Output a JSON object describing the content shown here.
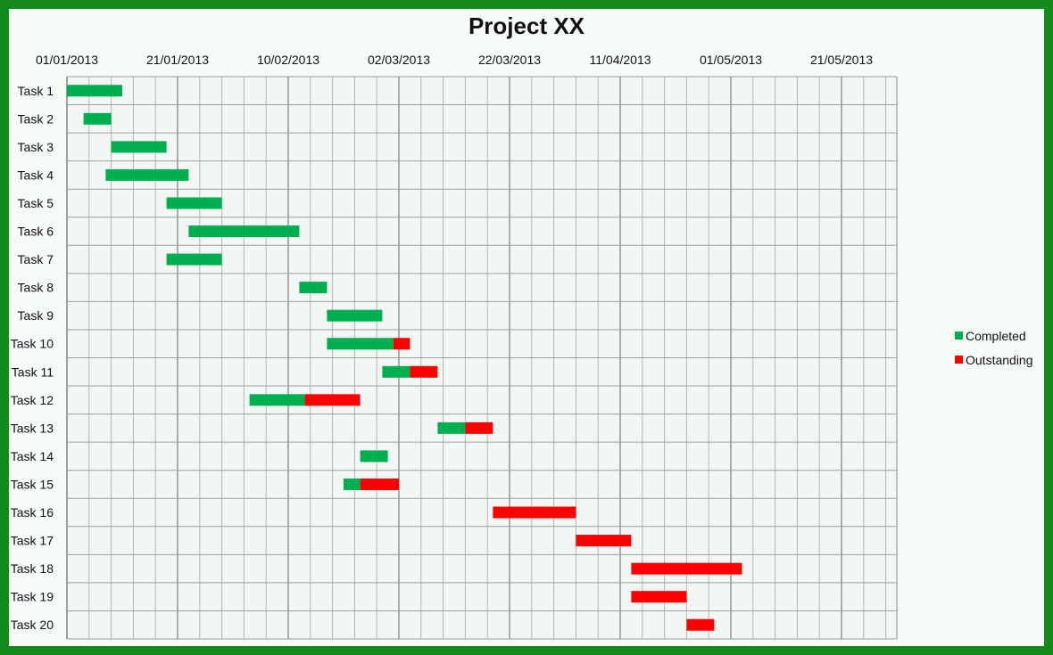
{
  "title": "Project XX",
  "chart_data": {
    "type": "gantt",
    "title": "Project XX",
    "x_axis": {
      "start": "01/01/2013",
      "end": "31/05/2013",
      "tick_labels": [
        "01/01/2013",
        "21/01/2013",
        "10/02/2013",
        "02/03/2013",
        "22/03/2013",
        "11/04/2013",
        "01/05/2013",
        "21/05/2013"
      ],
      "tick_interval_days": 20,
      "minor_grid_days": 4
    },
    "grid": true,
    "legend_position": "right",
    "series": [
      {
        "name": "Completed",
        "color": "#00b050"
      },
      {
        "name": "Outstanding",
        "color": "#ff0000"
      }
    ],
    "tasks": [
      {
        "name": "Task 1",
        "start": "01/01/2013",
        "completed_days": 10,
        "outstanding_days": 0
      },
      {
        "name": "Task 2",
        "start": "04/01/2013",
        "completed_days": 5,
        "outstanding_days": 0
      },
      {
        "name": "Task 3",
        "start": "09/01/2013",
        "completed_days": 10,
        "outstanding_days": 0
      },
      {
        "name": "Task 4",
        "start": "08/01/2013",
        "completed_days": 15,
        "outstanding_days": 0
      },
      {
        "name": "Task 5",
        "start": "19/01/2013",
        "completed_days": 10,
        "outstanding_days": 0
      },
      {
        "name": "Task 6",
        "start": "23/01/2013",
        "completed_days": 20,
        "outstanding_days": 0
      },
      {
        "name": "Task 7",
        "start": "19/01/2013",
        "completed_days": 10,
        "outstanding_days": 0
      },
      {
        "name": "Task 8",
        "start": "12/02/2013",
        "completed_days": 5,
        "outstanding_days": 0
      },
      {
        "name": "Task 9",
        "start": "17/02/2013",
        "completed_days": 10,
        "outstanding_days": 0
      },
      {
        "name": "Task 10",
        "start": "17/02/2013",
        "completed_days": 12,
        "outstanding_days": 3
      },
      {
        "name": "Task 11",
        "start": "27/02/2013",
        "completed_days": 5,
        "outstanding_days": 5
      },
      {
        "name": "Task 12",
        "start": "03/02/2013",
        "completed_days": 10,
        "outstanding_days": 10
      },
      {
        "name": "Task 13",
        "start": "09/03/2013",
        "completed_days": 5,
        "outstanding_days": 5
      },
      {
        "name": "Task 14",
        "start": "23/02/2013",
        "completed_days": 5,
        "outstanding_days": 0
      },
      {
        "name": "Task 15",
        "start": "20/02/2013",
        "completed_days": 3,
        "outstanding_days": 7
      },
      {
        "name": "Task 16",
        "start": "19/03/2013",
        "completed_days": 0,
        "outstanding_days": 15
      },
      {
        "name": "Task 17",
        "start": "03/04/2013",
        "completed_days": 0,
        "outstanding_days": 10
      },
      {
        "name": "Task 18",
        "start": "13/04/2013",
        "completed_days": 0,
        "outstanding_days": 20
      },
      {
        "name": "Task 19",
        "start": "13/04/2013",
        "completed_days": 0,
        "outstanding_days": 10
      },
      {
        "name": "Task 20",
        "start": "23/04/2013",
        "completed_days": 0,
        "outstanding_days": 5
      }
    ]
  }
}
